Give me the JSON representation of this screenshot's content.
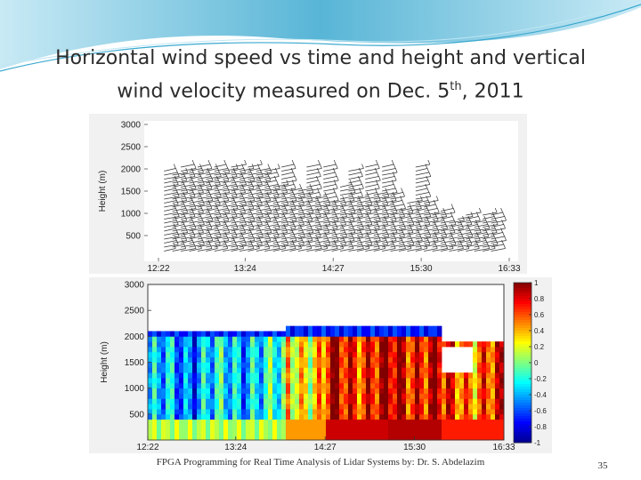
{
  "slide": {
    "title_line1": "Horizontal wind speed vs time and height and vertical",
    "title_line2_main": "wind velocity measured on Dec. 5",
    "title_line2_sup": "th",
    "title_line2_end": ", 2011",
    "footer": "FPGA Programming for Real Time Analysis of Lidar Systems by: Dr. S. Abdelazim",
    "page_number": "35"
  },
  "colors": {
    "wave_dark": "#3aa8cf",
    "wave_light": "#bfe6f3",
    "barb": "#333333"
  },
  "chart_data": [
    {
      "type": "wind-barb",
      "title": "",
      "xlabel": "",
      "ylabel": "Height (m)",
      "x_ticks": [
        "12:22",
        "13:24",
        "14:27",
        "15:30",
        "16:33"
      ],
      "y_ticks": [
        500,
        1000,
        1500,
        2000,
        2500,
        3000
      ],
      "ylim": [
        0,
        3000
      ],
      "profiles": [
        {
          "time": "12:26",
          "top": 2000
        },
        {
          "time": "12:32",
          "top": 1900
        },
        {
          "time": "12:38",
          "top": 2050
        },
        {
          "time": "12:44",
          "top": 2000
        },
        {
          "time": "12:50",
          "top": 2050
        },
        {
          "time": "12:56",
          "top": 2000
        },
        {
          "time": "13:02",
          "top": 2050
        },
        {
          "time": "13:08",
          "top": 1950
        },
        {
          "time": "13:14",
          "top": 2050
        },
        {
          "time": "13:20",
          "top": 2000
        },
        {
          "time": "13:26",
          "top": 2050
        },
        {
          "time": "13:32",
          "top": 2000
        },
        {
          "time": "13:38",
          "top": 1950
        },
        {
          "time": "13:44",
          "top": 1600
        },
        {
          "time": "13:50",
          "top": 2050
        },
        {
          "time": "13:56",
          "top": 1500
        },
        {
          "time": "14:02",
          "top": 1500
        },
        {
          "time": "14:08",
          "top": 2050
        },
        {
          "time": "14:14",
          "top": 1400
        },
        {
          "time": "14:20",
          "top": 2050
        },
        {
          "time": "14:26",
          "top": 1300
        },
        {
          "time": "14:32",
          "top": 1600
        },
        {
          "time": "14:38",
          "top": 2000
        },
        {
          "time": "14:44",
          "top": 1400
        },
        {
          "time": "14:50",
          "top": 2050
        },
        {
          "time": "14:56",
          "top": 1450
        },
        {
          "time": "15:02",
          "top": 2050
        },
        {
          "time": "15:08",
          "top": 1450
        },
        {
          "time": "15:14",
          "top": 1100
        },
        {
          "time": "15:20",
          "top": 1300
        },
        {
          "time": "15:26",
          "top": 2050
        },
        {
          "time": "15:32",
          "top": 1300
        },
        {
          "time": "15:38",
          "top": 1000
        },
        {
          "time": "15:44",
          "top": 1050
        },
        {
          "time": "15:50",
          "top": 850
        },
        {
          "time": "15:56",
          "top": 900
        },
        {
          "time": "16:02",
          "top": 1000
        },
        {
          "time": "16:08",
          "top": 850
        },
        {
          "time": "16:14",
          "top": 1000
        },
        {
          "time": "16:20",
          "top": 1000
        }
      ]
    },
    {
      "type": "heatmap",
      "title": "",
      "xlabel": "",
      "ylabel": "Height (m)",
      "x_ticks": [
        "12:22",
        "13:24",
        "14:27",
        "15:30",
        "16:33"
      ],
      "y_ticks": [
        500,
        1000,
        1500,
        2000,
        2500,
        3000
      ],
      "ylim": [
        0,
        3000
      ],
      "colorbar_ticks": [
        -1,
        -0.8,
        -0.6,
        -0.4,
        -0.2,
        0,
        0.2,
        0.4,
        0.6,
        0.8,
        1
      ],
      "colorbar_tick_labels": [
        "-1",
        "-0.8",
        "-0.6",
        "-0.4",
        "-0.2",
        "0",
        "0.2",
        "0.4",
        "0.6",
        "0.8",
        "1"
      ],
      "clim": [
        -1,
        1
      ],
      "colormap": [
        "#00008f",
        "#0000ff",
        "#0080ff",
        "#00ffff",
        "#80ff80",
        "#ffff00",
        "#ff8000",
        "#ff0000",
        "#800000"
      ],
      "regions": [
        {
          "from": "12:22",
          "to": "12:56",
          "top": 2100,
          "value": -0.45
        },
        {
          "from": "12:56",
          "to": "13:30",
          "top": 2050,
          "value": -0.35
        },
        {
          "from": "13:30",
          "to": "14:00",
          "top": 2100,
          "value": -0.25
        },
        {
          "from": "14:00",
          "to": "14:27",
          "top": 2200,
          "value": 0.35
        },
        {
          "from": "14:27",
          "to": "15:10",
          "top": 2150,
          "value": 0.75
        },
        {
          "from": "15:10",
          "to": "15:50",
          "top": 2200,
          "value": 0.8
        },
        {
          "from": "15:50",
          "to": "16:33",
          "top": 1900,
          "value": 0.6
        }
      ],
      "bands": [
        {
          "height_min": 0,
          "height_max": 450,
          "value": 0.1
        },
        {
          "height_min": 2050,
          "height_max": 2400,
          "value": -0.7
        }
      ],
      "missing_data": {
        "from": "15:50",
        "to": "16:10",
        "height_min": 1300,
        "height_max": 1800
      }
    }
  ]
}
